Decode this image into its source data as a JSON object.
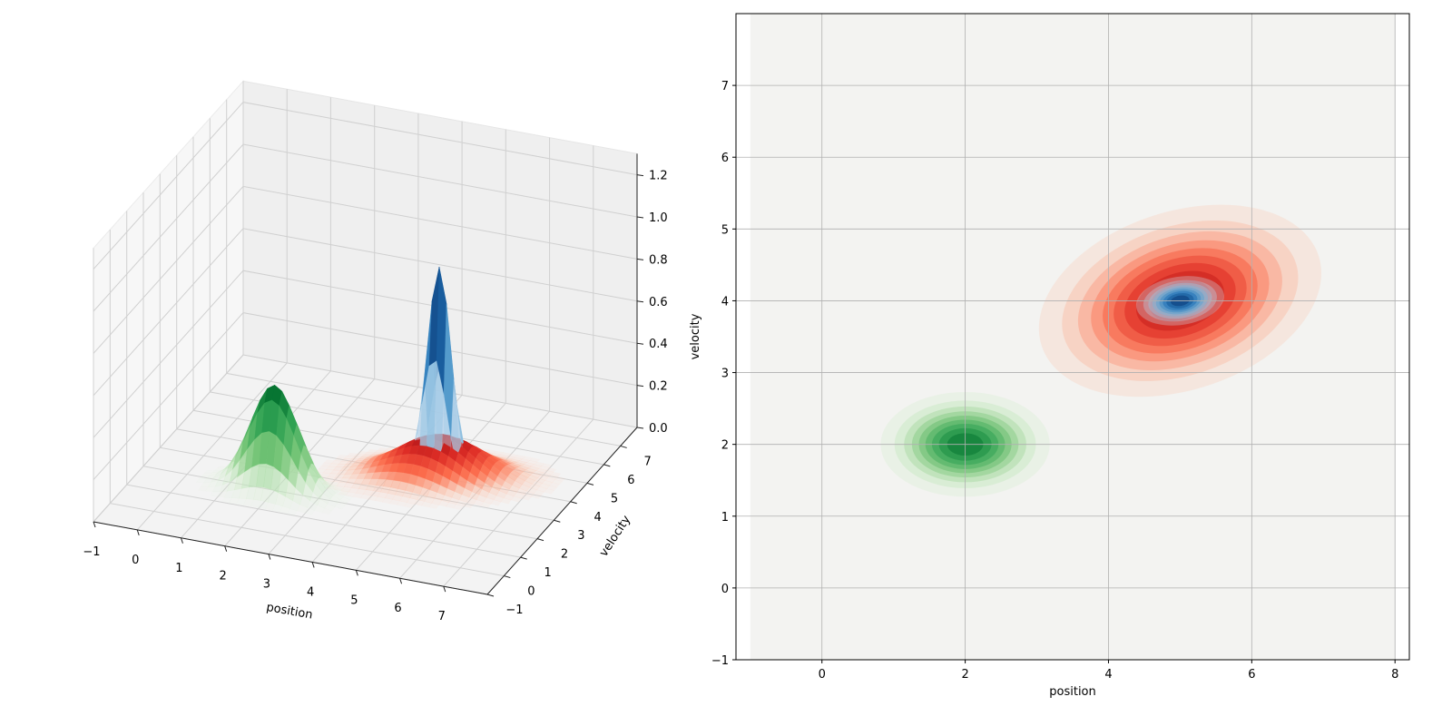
{
  "chart_data": [
    {
      "type": "surface3d",
      "xlabel": "position",
      "ylabel": "velocity",
      "zlabel": "",
      "xlim": [
        -1,
        8
      ],
      "ylim": [
        -1,
        8
      ],
      "zlim": [
        0,
        1.3
      ],
      "xticks": [
        -1,
        0,
        1,
        2,
        3,
        4,
        5,
        6,
        7
      ],
      "yticks": [
        -1,
        0,
        1,
        2,
        3,
        4,
        5,
        6,
        7
      ],
      "zticks": [
        0.0,
        0.2,
        0.4,
        0.6,
        0.8,
        1.0,
        1.2
      ],
      "grid": true,
      "series": [
        {
          "colormap": "Greens",
          "color": "#3a8c55",
          "mean": [
            2,
            2
          ],
          "sigma": [
            0.55,
            0.34
          ],
          "rho": 0,
          "peak": 0.5
        },
        {
          "colormap": "Reds",
          "color": "#c83a35",
          "mean": [
            5,
            4
          ],
          "sigma": [
            0.9,
            0.6
          ],
          "rho": 0.35,
          "peak": 0.2
        },
        {
          "colormap": "Blues",
          "color": "#1a4f8c",
          "mean": [
            5,
            4
          ],
          "sigma": [
            0.28,
            0.16
          ],
          "rho": 0.2,
          "peak": 1.0
        }
      ]
    },
    {
      "type": "contourf",
      "xlabel": "position",
      "ylabel": "velocity",
      "xlim": [
        -1.2,
        8.2
      ],
      "ylim": [
        -1,
        8
      ],
      "xticks": [
        0,
        2,
        4,
        6,
        8
      ],
      "yticks": [
        -1,
        0,
        1,
        2,
        3,
        4,
        5,
        6,
        7
      ],
      "grid": true,
      "background": "#f3f3f1"
    }
  ]
}
